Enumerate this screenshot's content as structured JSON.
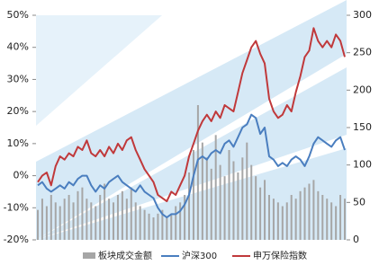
{
  "chart_data": {
    "type": "bar-line",
    "categories": [
      null,
      null,
      null,
      null,
      null,
      null,
      null,
      null,
      null,
      null,
      null,
      null,
      null,
      null,
      null,
      null,
      null,
      null,
      null,
      null,
      null,
      null,
      null,
      null,
      null,
      null,
      null,
      null,
      null,
      null,
      null,
      null,
      null,
      null,
      null,
      null,
      null,
      null,
      null,
      null,
      null,
      null,
      null,
      null,
      null,
      null,
      null,
      null,
      null,
      null,
      null,
      null,
      null,
      null,
      null,
      null,
      null,
      null,
      null,
      null,
      null,
      null,
      null,
      null,
      null,
      null,
      null,
      null,
      null,
      null
    ],
    "series": [
      {
        "name": "板块成交金额",
        "type": "bar",
        "axis": "y2",
        "color": "#a6a6a6",
        "values": [
          40,
          55,
          45,
          60,
          50,
          45,
          55,
          60,
          50,
          65,
          70,
          55,
          50,
          45,
          60,
          75,
          55,
          50,
          60,
          65,
          55,
          70,
          50,
          45,
          40,
          35,
          30,
          35,
          40,
          30,
          35,
          45,
          50,
          60,
          90,
          120,
          180,
          130,
          110,
          95,
          140,
          100,
          85,
          120,
          105,
          90,
          110,
          130,
          100,
          85,
          70,
          80,
          60,
          55,
          50,
          45,
          50,
          60,
          55,
          65,
          70,
          75,
          80,
          65,
          60,
          55,
          50,
          45,
          60,
          55
        ]
      },
      {
        "name": "沪深300",
        "type": "line",
        "color": "#4a7ebf",
        "values": [
          -3,
          -2,
          -4,
          -5,
          -4,
          -3,
          -4,
          -2,
          -3,
          -1,
          0,
          0,
          -3,
          -5,
          -3,
          -4,
          -2,
          -1,
          0,
          -2,
          -3,
          -4,
          -5,
          -3,
          -5,
          -6,
          -7,
          -10,
          -12,
          -13,
          -12,
          -12,
          -11,
          -9,
          -6,
          0,
          5,
          6,
          5,
          7,
          8,
          7,
          10,
          11,
          9,
          12,
          15,
          16,
          19,
          18,
          13,
          15,
          6,
          5,
          3,
          4,
          3,
          5,
          6,
          5,
          3,
          6,
          10,
          12,
          11,
          10,
          9,
          11,
          12,
          8
        ]
      },
      {
        "name": "申万保险指数",
        "type": "line",
        "color": "#c0393b",
        "values": [
          -2,
          0,
          1,
          -3,
          3,
          6,
          5,
          7,
          6,
          9,
          8,
          11,
          7,
          6,
          8,
          6,
          9,
          7,
          10,
          8,
          11,
          12,
          8,
          5,
          2,
          0,
          -2,
          -6,
          -7,
          -8,
          -5,
          -6,
          -3,
          0,
          6,
          10,
          14,
          17,
          19,
          17,
          20,
          18,
          22,
          21,
          20,
          26,
          32,
          36,
          40,
          42,
          38,
          35,
          24,
          20,
          18,
          19,
          22,
          20,
          26,
          31,
          37,
          39,
          46,
          42,
          40,
          42,
          40,
          44,
          42,
          37
        ]
      }
    ],
    "ylim": [
      -20,
      50
    ],
    "yticks": [
      {
        "value": -20,
        "label": "-20%"
      },
      {
        "value": -10,
        "label": "-10%"
      },
      {
        "value": 0,
        "label": "0%"
      },
      {
        "value": 10,
        "label": "10%"
      },
      {
        "value": 20,
        "label": "20%"
      },
      {
        "value": 30,
        "label": "30%"
      },
      {
        "value": 40,
        "label": "40%"
      },
      {
        "value": 50,
        "label": "50%"
      }
    ],
    "y2lim": [
      0,
      300
    ],
    "y2ticks": [
      0,
      50,
      100,
      150,
      200,
      250,
      300
    ]
  }
}
